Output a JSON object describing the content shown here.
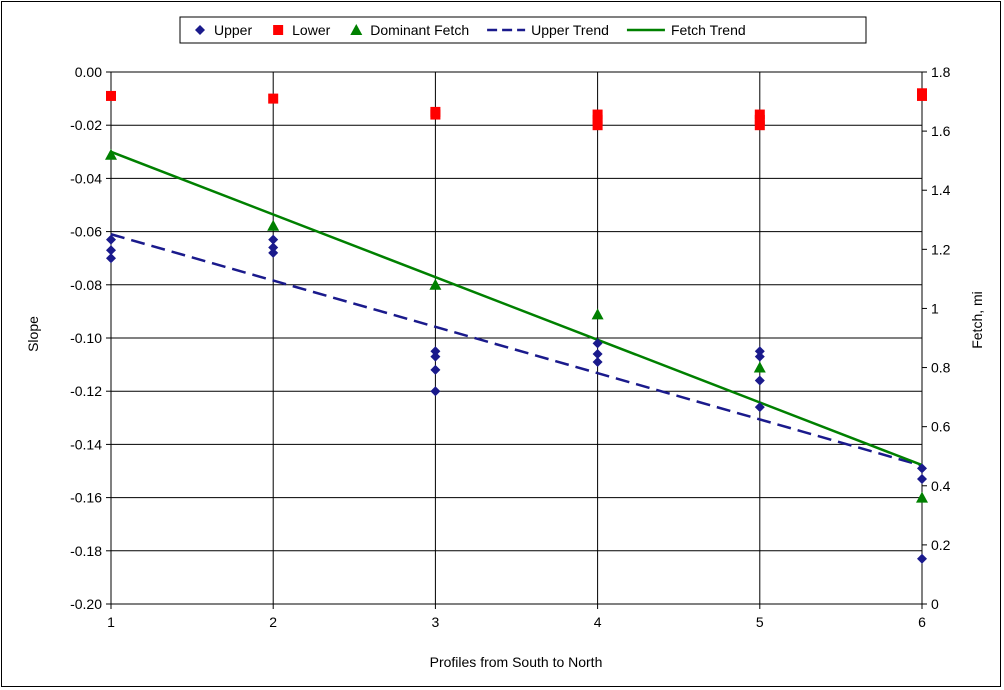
{
  "chart_data": {
    "type": "scatter",
    "xlabel": "Profiles from South to North",
    "ylabel": "Slope",
    "y2label": "Fetch, mi",
    "xlim": [
      1,
      6
    ],
    "ylim": [
      -0.2,
      0.0
    ],
    "y2lim": [
      0,
      1.8
    ],
    "x_ticks": [
      "1",
      "2",
      "3",
      "4",
      "5",
      "6"
    ],
    "y_ticks": [
      "0.00",
      "-0.02",
      "-0.04",
      "-0.06",
      "-0.08",
      "-0.10",
      "-0.12",
      "-0.14",
      "-0.16",
      "-0.18",
      "-0.20"
    ],
    "y2_ticks": [
      "1.8",
      "1.6",
      "1.4",
      "1.2",
      "1",
      "0.8",
      "0.6",
      "0.4",
      "0.2",
      "0"
    ],
    "grid": "vertical and horizontal major gridlines",
    "legend_position": "top",
    "series": [
      {
        "name": "Upper",
        "marker": "diamond",
        "color": "#1a1a8c",
        "axis": "left",
        "points": [
          [
            1,
            -0.063
          ],
          [
            1,
            -0.067
          ],
          [
            1,
            -0.07
          ],
          [
            2,
            -0.063
          ],
          [
            2,
            -0.066
          ],
          [
            2,
            -0.068
          ],
          [
            3,
            -0.105
          ],
          [
            3,
            -0.107
          ],
          [
            3,
            -0.112
          ],
          [
            3,
            -0.12
          ],
          [
            4,
            -0.102
          ],
          [
            4,
            -0.106
          ],
          [
            4,
            -0.109
          ],
          [
            5,
            -0.105
          ],
          [
            5,
            -0.107
          ],
          [
            5,
            -0.116
          ],
          [
            5,
            -0.126
          ],
          [
            6,
            -0.149
          ],
          [
            6,
            -0.153
          ],
          [
            6,
            -0.183
          ]
        ]
      },
      {
        "name": "Lower",
        "marker": "square",
        "color": "#ff0000",
        "axis": "left",
        "points": [
          [
            1,
            -0.009
          ],
          [
            2,
            -0.01
          ],
          [
            3,
            -0.015
          ],
          [
            3,
            -0.016
          ],
          [
            4,
            -0.016
          ],
          [
            4,
            -0.018
          ],
          [
            4,
            -0.02
          ],
          [
            5,
            -0.016
          ],
          [
            5,
            -0.018
          ],
          [
            5,
            -0.02
          ],
          [
            6,
            -0.008
          ],
          [
            6,
            -0.009
          ]
        ]
      },
      {
        "name": "Dominant Fetch",
        "marker": "triangle",
        "color": "#008000",
        "axis": "right",
        "points": [
          [
            1,
            1.52
          ],
          [
            2,
            1.28
          ],
          [
            3,
            1.08
          ],
          [
            4,
            0.98
          ],
          [
            5,
            0.8
          ],
          [
            6,
            0.36
          ]
        ]
      },
      {
        "name": "Upper Trend",
        "line": "dashed",
        "color": "#1a1a8c",
        "axis": "left",
        "points": [
          [
            1,
            -0.061
          ],
          [
            6,
            -0.148
          ]
        ]
      },
      {
        "name": "Fetch Trend",
        "line": "solid",
        "color": "#008000",
        "axis": "right",
        "points": [
          [
            1,
            1.53
          ],
          [
            6,
            0.47
          ]
        ]
      }
    ]
  }
}
